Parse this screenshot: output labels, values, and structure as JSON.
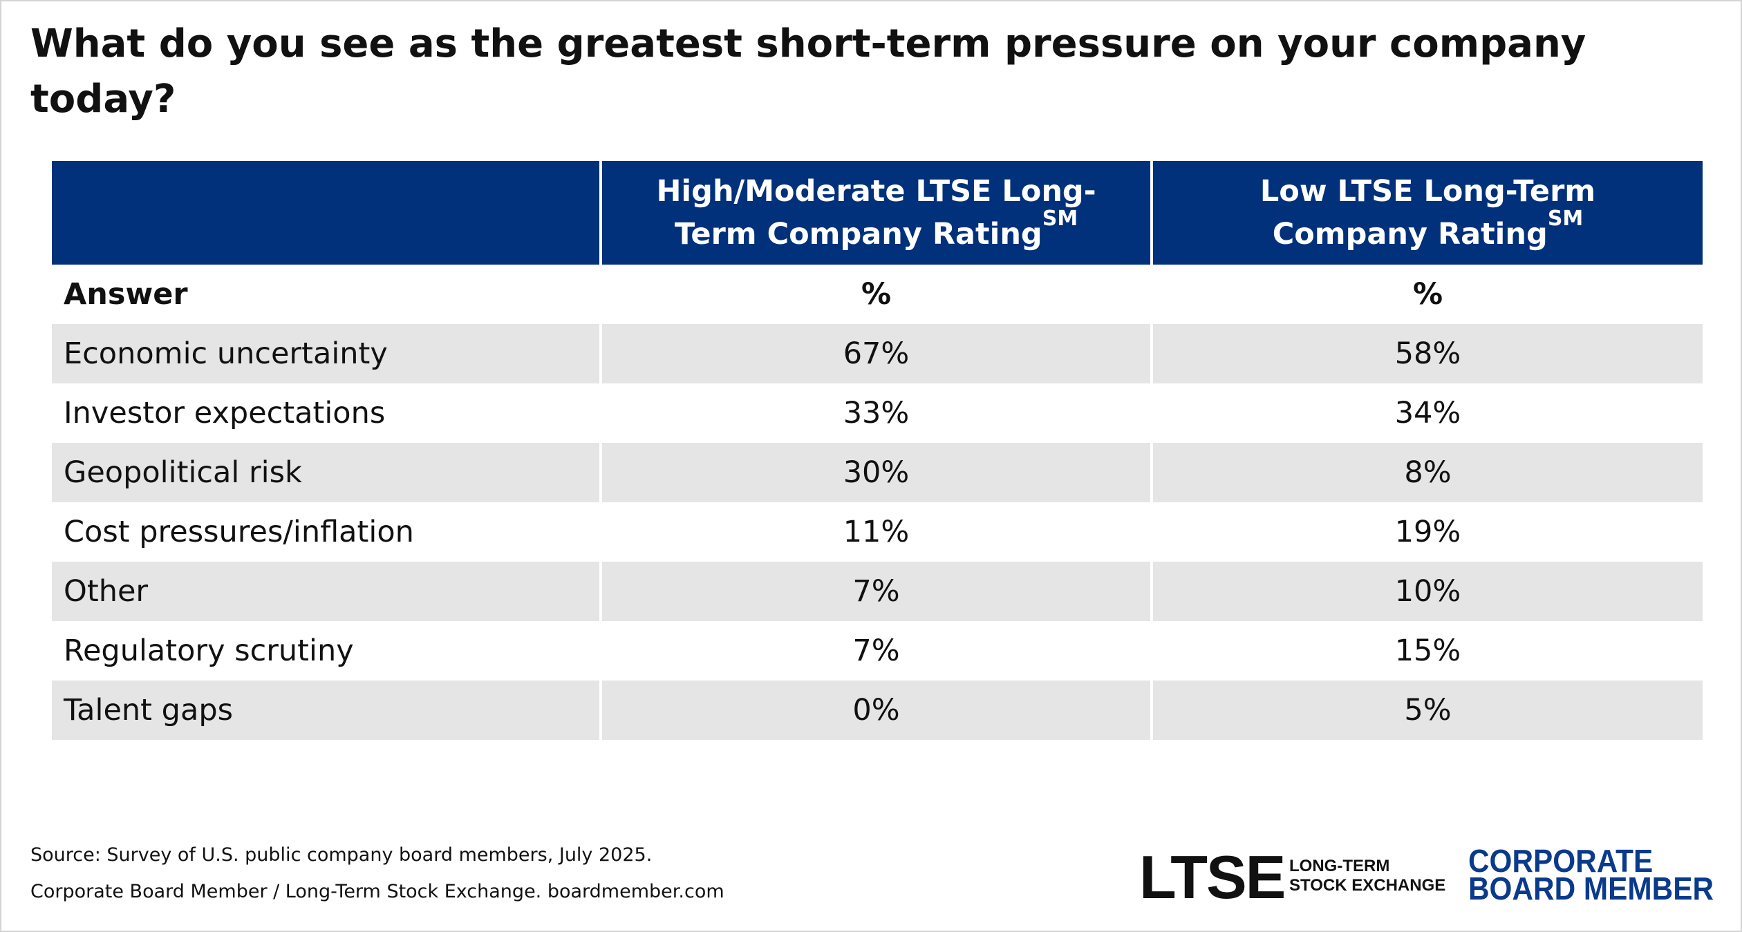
{
  "chart_data": {
    "type": "table",
    "title": "What do you see as the greatest short-term pressure on your company today?",
    "columns": [
      {
        "label": "",
        "sup": ""
      },
      {
        "label": "High/Moderate LTSE Long-Term Company Rating",
        "sup": "SM"
      },
      {
        "label": "Low LTSE Long-Term Company Rating",
        "sup": "SM"
      }
    ],
    "subheader": [
      "Answer",
      "%",
      "%"
    ],
    "rows": [
      {
        "answer": "Economic uncertainty",
        "high_moderate": "67%",
        "low": "58%"
      },
      {
        "answer": "Investor expectations",
        "high_moderate": "33%",
        "low": "34%"
      },
      {
        "answer": "Geopolitical risk",
        "high_moderate": "30%",
        "low": "8%"
      },
      {
        "answer": "Cost pressures/inflation",
        "high_moderate": "11%",
        "low": "19%"
      },
      {
        "answer": "Other",
        "high_moderate": "7%",
        "low": "10%"
      },
      {
        "answer": "Regulatory scrutiny",
        "high_moderate": "7%",
        "low": "15%"
      },
      {
        "answer": "Talent gaps",
        "high_moderate": "0%",
        "low": "5%"
      }
    ]
  },
  "footer": {
    "source": "Source: Survey of U.S. public company board members, July 2025.",
    "credit": "Corporate Board Member / Long-Term Stock Exchange. boardmember.com"
  },
  "logos": {
    "ltse": "LTSE",
    "ltse_sub_line1": "LONG-TERM",
    "ltse_sub_line2": "STOCK EXCHANGE",
    "cbm_line1": "CORPORATE",
    "cbm_line2": "BOARD MEMBER",
    "cbm_color": "#0a3a8c"
  },
  "colors": {
    "header_bg": "#00317a",
    "stripe": "#e5e5e5"
  }
}
